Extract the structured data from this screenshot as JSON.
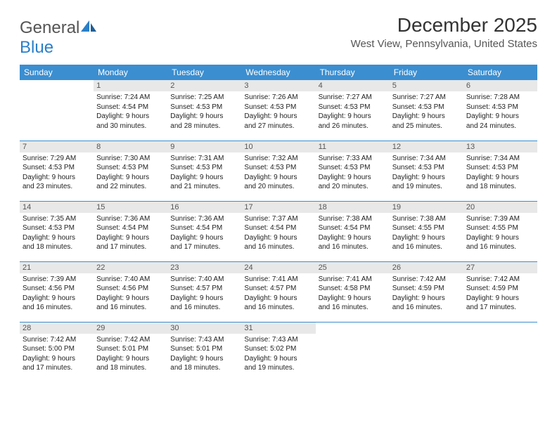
{
  "brand": {
    "text1": "General",
    "text2": "Blue"
  },
  "title": "December 2025",
  "location": "West View, Pennsylvania, United States",
  "colors": {
    "header_bg": "#3b8ed0",
    "header_text": "#ffffff",
    "daynum_bg": "#e8e8e8",
    "row_divider": "#3b8ed0",
    "cell_text": "#222222",
    "logo_blue": "#2a7fc9"
  },
  "day_headers": [
    "Sunday",
    "Monday",
    "Tuesday",
    "Wednesday",
    "Thursday",
    "Friday",
    "Saturday"
  ],
  "weeks": [
    [
      {
        "num": "",
        "lines": []
      },
      {
        "num": "1",
        "lines": [
          "Sunrise: 7:24 AM",
          "Sunset: 4:54 PM",
          "Daylight: 9 hours",
          "and 30 minutes."
        ]
      },
      {
        "num": "2",
        "lines": [
          "Sunrise: 7:25 AM",
          "Sunset: 4:53 PM",
          "Daylight: 9 hours",
          "and 28 minutes."
        ]
      },
      {
        "num": "3",
        "lines": [
          "Sunrise: 7:26 AM",
          "Sunset: 4:53 PM",
          "Daylight: 9 hours",
          "and 27 minutes."
        ]
      },
      {
        "num": "4",
        "lines": [
          "Sunrise: 7:27 AM",
          "Sunset: 4:53 PM",
          "Daylight: 9 hours",
          "and 26 minutes."
        ]
      },
      {
        "num": "5",
        "lines": [
          "Sunrise: 7:27 AM",
          "Sunset: 4:53 PM",
          "Daylight: 9 hours",
          "and 25 minutes."
        ]
      },
      {
        "num": "6",
        "lines": [
          "Sunrise: 7:28 AM",
          "Sunset: 4:53 PM",
          "Daylight: 9 hours",
          "and 24 minutes."
        ]
      }
    ],
    [
      {
        "num": "7",
        "lines": [
          "Sunrise: 7:29 AM",
          "Sunset: 4:53 PM",
          "Daylight: 9 hours",
          "and 23 minutes."
        ]
      },
      {
        "num": "8",
        "lines": [
          "Sunrise: 7:30 AM",
          "Sunset: 4:53 PM",
          "Daylight: 9 hours",
          "and 22 minutes."
        ]
      },
      {
        "num": "9",
        "lines": [
          "Sunrise: 7:31 AM",
          "Sunset: 4:53 PM",
          "Daylight: 9 hours",
          "and 21 minutes."
        ]
      },
      {
        "num": "10",
        "lines": [
          "Sunrise: 7:32 AM",
          "Sunset: 4:53 PM",
          "Daylight: 9 hours",
          "and 20 minutes."
        ]
      },
      {
        "num": "11",
        "lines": [
          "Sunrise: 7:33 AM",
          "Sunset: 4:53 PM",
          "Daylight: 9 hours",
          "and 20 minutes."
        ]
      },
      {
        "num": "12",
        "lines": [
          "Sunrise: 7:34 AM",
          "Sunset: 4:53 PM",
          "Daylight: 9 hours",
          "and 19 minutes."
        ]
      },
      {
        "num": "13",
        "lines": [
          "Sunrise: 7:34 AM",
          "Sunset: 4:53 PM",
          "Daylight: 9 hours",
          "and 18 minutes."
        ]
      }
    ],
    [
      {
        "num": "14",
        "lines": [
          "Sunrise: 7:35 AM",
          "Sunset: 4:53 PM",
          "Daylight: 9 hours",
          "and 18 minutes."
        ]
      },
      {
        "num": "15",
        "lines": [
          "Sunrise: 7:36 AM",
          "Sunset: 4:54 PM",
          "Daylight: 9 hours",
          "and 17 minutes."
        ]
      },
      {
        "num": "16",
        "lines": [
          "Sunrise: 7:36 AM",
          "Sunset: 4:54 PM",
          "Daylight: 9 hours",
          "and 17 minutes."
        ]
      },
      {
        "num": "17",
        "lines": [
          "Sunrise: 7:37 AM",
          "Sunset: 4:54 PM",
          "Daylight: 9 hours",
          "and 16 minutes."
        ]
      },
      {
        "num": "18",
        "lines": [
          "Sunrise: 7:38 AM",
          "Sunset: 4:54 PM",
          "Daylight: 9 hours",
          "and 16 minutes."
        ]
      },
      {
        "num": "19",
        "lines": [
          "Sunrise: 7:38 AM",
          "Sunset: 4:55 PM",
          "Daylight: 9 hours",
          "and 16 minutes."
        ]
      },
      {
        "num": "20",
        "lines": [
          "Sunrise: 7:39 AM",
          "Sunset: 4:55 PM",
          "Daylight: 9 hours",
          "and 16 minutes."
        ]
      }
    ],
    [
      {
        "num": "21",
        "lines": [
          "Sunrise: 7:39 AM",
          "Sunset: 4:56 PM",
          "Daylight: 9 hours",
          "and 16 minutes."
        ]
      },
      {
        "num": "22",
        "lines": [
          "Sunrise: 7:40 AM",
          "Sunset: 4:56 PM",
          "Daylight: 9 hours",
          "and 16 minutes."
        ]
      },
      {
        "num": "23",
        "lines": [
          "Sunrise: 7:40 AM",
          "Sunset: 4:57 PM",
          "Daylight: 9 hours",
          "and 16 minutes."
        ]
      },
      {
        "num": "24",
        "lines": [
          "Sunrise: 7:41 AM",
          "Sunset: 4:57 PM",
          "Daylight: 9 hours",
          "and 16 minutes."
        ]
      },
      {
        "num": "25",
        "lines": [
          "Sunrise: 7:41 AM",
          "Sunset: 4:58 PM",
          "Daylight: 9 hours",
          "and 16 minutes."
        ]
      },
      {
        "num": "26",
        "lines": [
          "Sunrise: 7:42 AM",
          "Sunset: 4:59 PM",
          "Daylight: 9 hours",
          "and 16 minutes."
        ]
      },
      {
        "num": "27",
        "lines": [
          "Sunrise: 7:42 AM",
          "Sunset: 4:59 PM",
          "Daylight: 9 hours",
          "and 17 minutes."
        ]
      }
    ],
    [
      {
        "num": "28",
        "lines": [
          "Sunrise: 7:42 AM",
          "Sunset: 5:00 PM",
          "Daylight: 9 hours",
          "and 17 minutes."
        ]
      },
      {
        "num": "29",
        "lines": [
          "Sunrise: 7:42 AM",
          "Sunset: 5:01 PM",
          "Daylight: 9 hours",
          "and 18 minutes."
        ]
      },
      {
        "num": "30",
        "lines": [
          "Sunrise: 7:43 AM",
          "Sunset: 5:01 PM",
          "Daylight: 9 hours",
          "and 18 minutes."
        ]
      },
      {
        "num": "31",
        "lines": [
          "Sunrise: 7:43 AM",
          "Sunset: 5:02 PM",
          "Daylight: 9 hours",
          "and 19 minutes."
        ]
      },
      {
        "num": "",
        "lines": []
      },
      {
        "num": "",
        "lines": []
      },
      {
        "num": "",
        "lines": []
      }
    ]
  ]
}
